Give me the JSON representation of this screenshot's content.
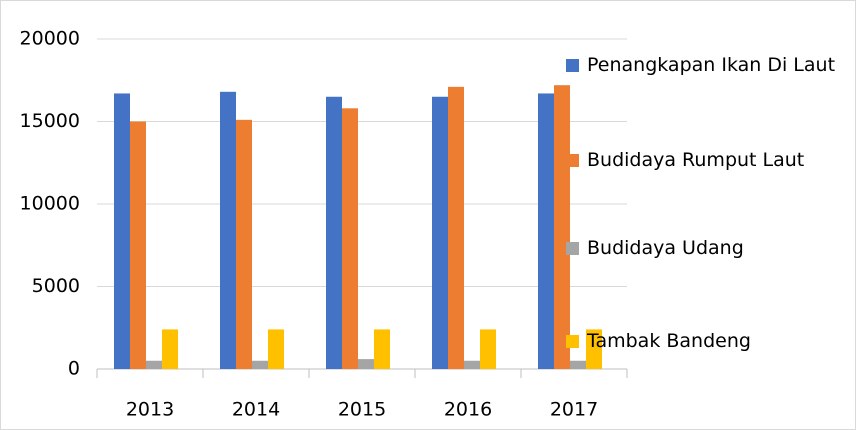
{
  "chart_data": {
    "type": "bar",
    "categories": [
      "2013",
      "2014",
      "2015",
      "2016",
      "2017"
    ],
    "series": [
      {
        "name": "Penangkapan Ikan Di Laut",
        "color": "#4472c4",
        "values": [
          16700,
          16800,
          16500,
          16500,
          16700
        ]
      },
      {
        "name": "Budidaya Rumput Laut",
        "color": "#ed7d31",
        "values": [
          15000,
          15100,
          15800,
          17100,
          17200
        ]
      },
      {
        "name": "Budidaya Udang",
        "color": "#a5a5a5",
        "values": [
          500,
          500,
          600,
          500,
          500
        ]
      },
      {
        "name": "Tambak Bandeng",
        "color": "#ffc000",
        "values": [
          2400,
          2400,
          2400,
          2400,
          2400
        ]
      }
    ],
    "ylim": [
      0,
      20000
    ],
    "yticks": [
      0,
      5000,
      10000,
      15000,
      20000
    ],
    "grid": true,
    "legend": "right"
  }
}
